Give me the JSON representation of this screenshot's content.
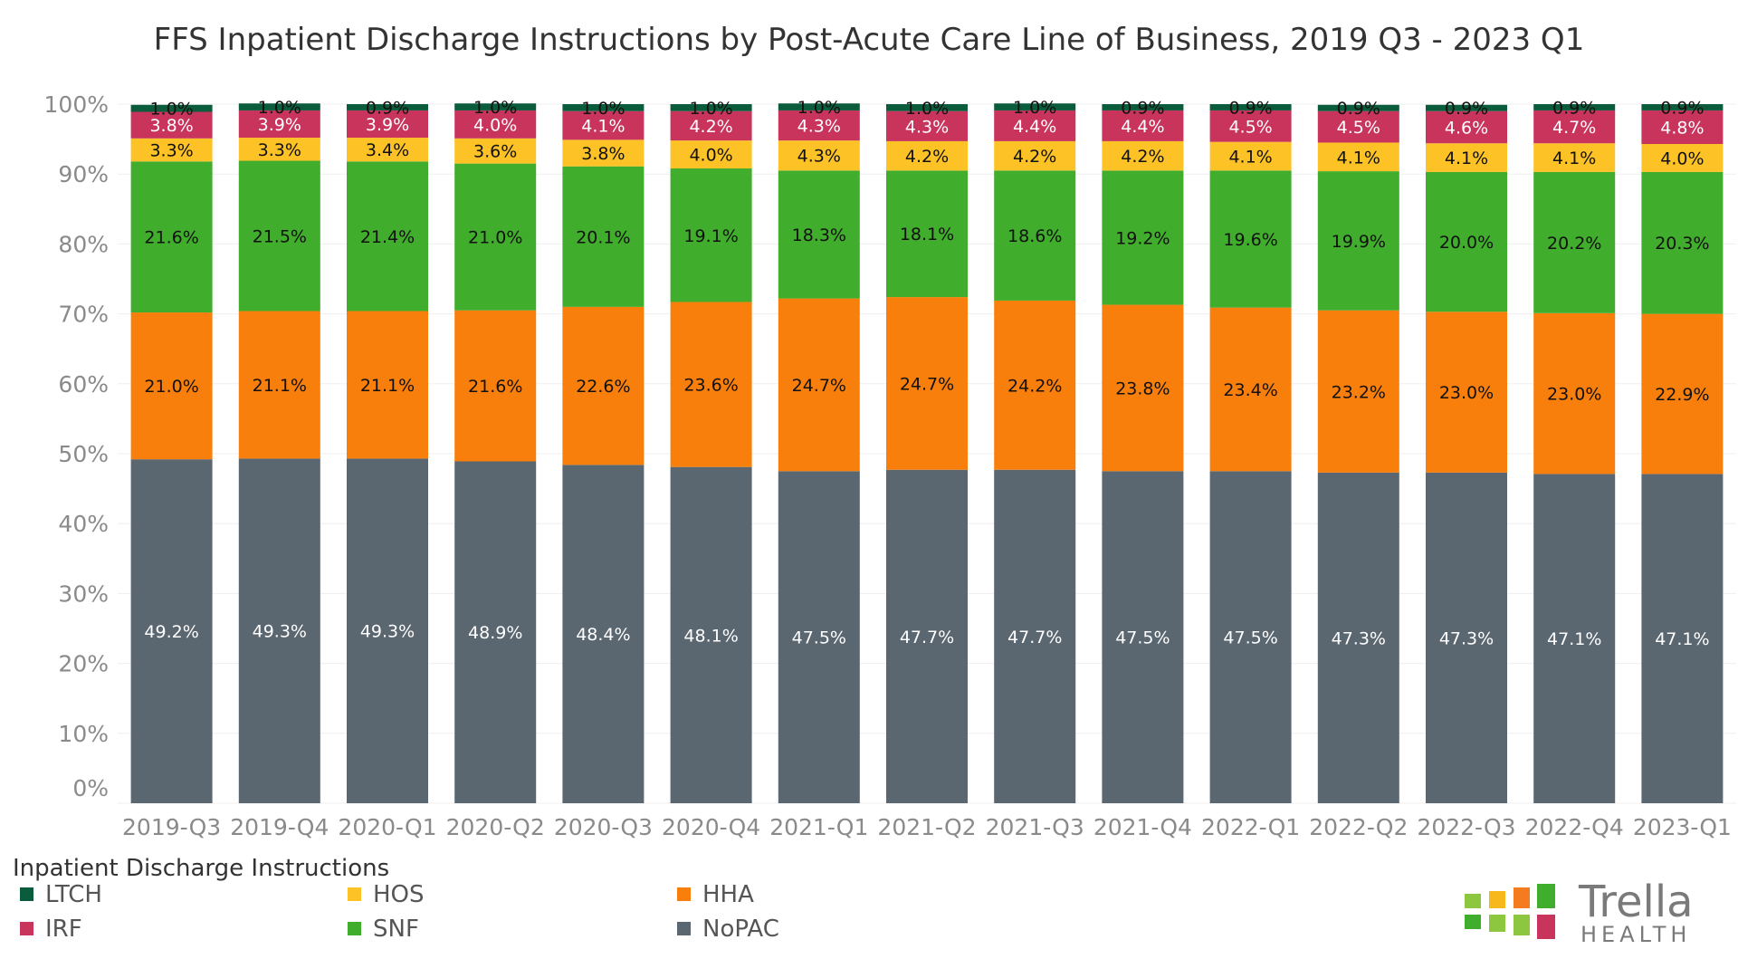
{
  "chart_data": {
    "type": "bar",
    "stacked": true,
    "title": "FFS Inpatient Discharge Instructions by Post-Acute Care Line of Business, 2019 Q3 - 2023 Q1",
    "xlabel": "",
    "ylabel": "",
    "ylim": [
      0,
      100
    ],
    "yticks": [
      "0%",
      "10%",
      "20%",
      "30%",
      "40%",
      "50%",
      "60%",
      "70%",
      "80%",
      "90%",
      "100%"
    ],
    "categories": [
      "2019-Q3",
      "2019-Q4",
      "2020-Q1",
      "2020-Q2",
      "2020-Q3",
      "2020-Q4",
      "2021-Q1",
      "2021-Q2",
      "2021-Q3",
      "2021-Q4",
      "2022-Q1",
      "2022-Q2",
      "2022-Q3",
      "2022-Q4",
      "2023-Q1"
    ],
    "series": [
      {
        "name": "NoPAC",
        "color": "#5a6670",
        "label_color": "#ffffff",
        "values": [
          49.2,
          49.3,
          49.3,
          48.9,
          48.4,
          48.1,
          47.5,
          47.7,
          47.7,
          47.5,
          47.5,
          47.3,
          47.3,
          47.1,
          47.1
        ]
      },
      {
        "name": "HHA",
        "color": "#f87f0c",
        "label_color": "#111111",
        "values": [
          21.0,
          21.1,
          21.1,
          21.6,
          22.6,
          23.6,
          24.7,
          24.7,
          24.2,
          23.8,
          23.4,
          23.2,
          23.0,
          23.0,
          22.9
        ]
      },
      {
        "name": "SNF",
        "color": "#40ad2c",
        "label_color": "#111111",
        "values": [
          21.6,
          21.5,
          21.4,
          21.0,
          20.1,
          19.1,
          18.3,
          18.1,
          18.6,
          19.2,
          19.6,
          19.9,
          20.0,
          20.2,
          20.3
        ]
      },
      {
        "name": "HOS",
        "color": "#fcc226",
        "label_color": "#111111",
        "values": [
          3.3,
          3.3,
          3.4,
          3.6,
          3.8,
          4.0,
          4.3,
          4.2,
          4.2,
          4.2,
          4.1,
          4.1,
          4.1,
          4.1,
          4.0
        ]
      },
      {
        "name": "IRF",
        "color": "#c9345d",
        "label_color": "#ffffff",
        "values": [
          3.8,
          3.9,
          3.9,
          4.0,
          4.1,
          4.2,
          4.3,
          4.3,
          4.4,
          4.4,
          4.5,
          4.5,
          4.6,
          4.7,
          4.8
        ]
      },
      {
        "name": "LTCH",
        "color": "#0b5c3c",
        "label_color": "#111111",
        "values": [
          1.0,
          1.0,
          0.9,
          1.0,
          1.0,
          1.0,
          1.0,
          1.0,
          1.0,
          0.9,
          0.9,
          0.9,
          0.9,
          0.9,
          0.9
        ]
      }
    ],
    "legend": {
      "title": "Inpatient Discharge Instructions",
      "position": "bottom-left",
      "items": [
        {
          "name": "LTCH",
          "color": "#0b5c3c"
        },
        {
          "name": "HOS",
          "color": "#fcc226"
        },
        {
          "name": "HHA",
          "color": "#f87f0c"
        },
        {
          "name": "IRF",
          "color": "#c9345d"
        },
        {
          "name": "SNF",
          "color": "#40ad2c"
        },
        {
          "name": "NoPAC",
          "color": "#5a6670"
        }
      ]
    },
    "grid": true
  },
  "logo": {
    "brand": "Trella",
    "subtitle": "HEALTH",
    "text_color": "#7a7a7a",
    "tile_colors": [
      "#8dc63f",
      "#f7b81c",
      "#f47b20",
      "#40ad2c",
      "#8dc63f",
      "#c9345d"
    ]
  }
}
